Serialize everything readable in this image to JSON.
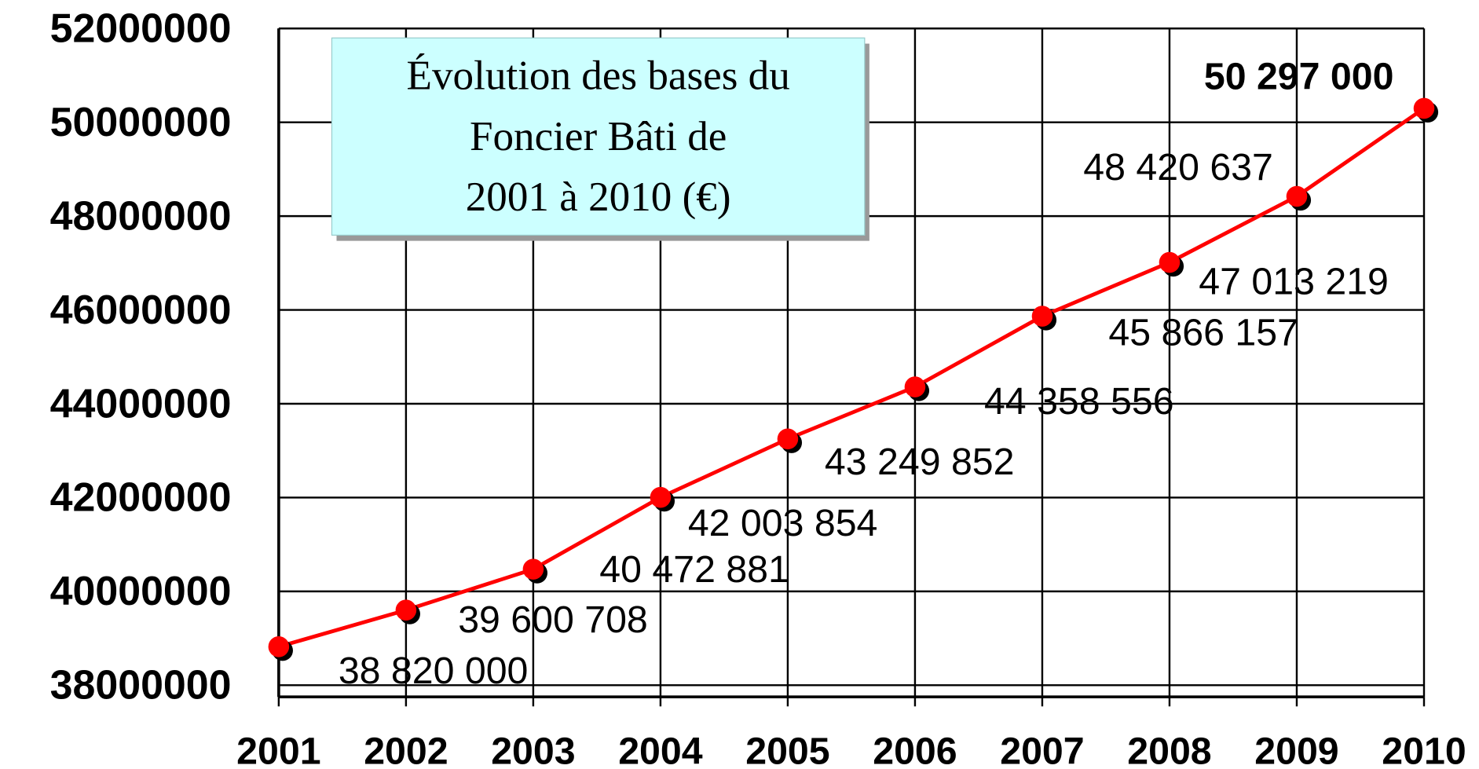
{
  "chart_data": {
    "type": "line",
    "title": [
      "Évolution des bases du",
      "Foncier Bâti de",
      "2001  à 2010 (€)"
    ],
    "categories": [
      "2001",
      "2002",
      "2003",
      "2004",
      "2005",
      "2006",
      "2007",
      "2008",
      "2009",
      "2010"
    ],
    "series": [
      {
        "color": "#ff0000",
        "values": [
          38820000,
          39600708,
          40472881,
          42003854,
          43249852,
          44358556,
          45866157,
          47013219,
          48420637,
          50297000
        ],
        "value_labels": [
          "38 820 000",
          "39 600 708",
          "40 472 881",
          "42 003 854",
          "43 249 852",
          "44 358 556",
          "45 866 157",
          "47 013 219",
          "48 420 637",
          "50 297 000"
        ]
      }
    ],
    "ylim": [
      37750000,
      52000000
    ],
    "yticks": [
      38000000,
      40000000,
      42000000,
      44000000,
      46000000,
      48000000,
      50000000,
      52000000
    ],
    "grid": true
  }
}
